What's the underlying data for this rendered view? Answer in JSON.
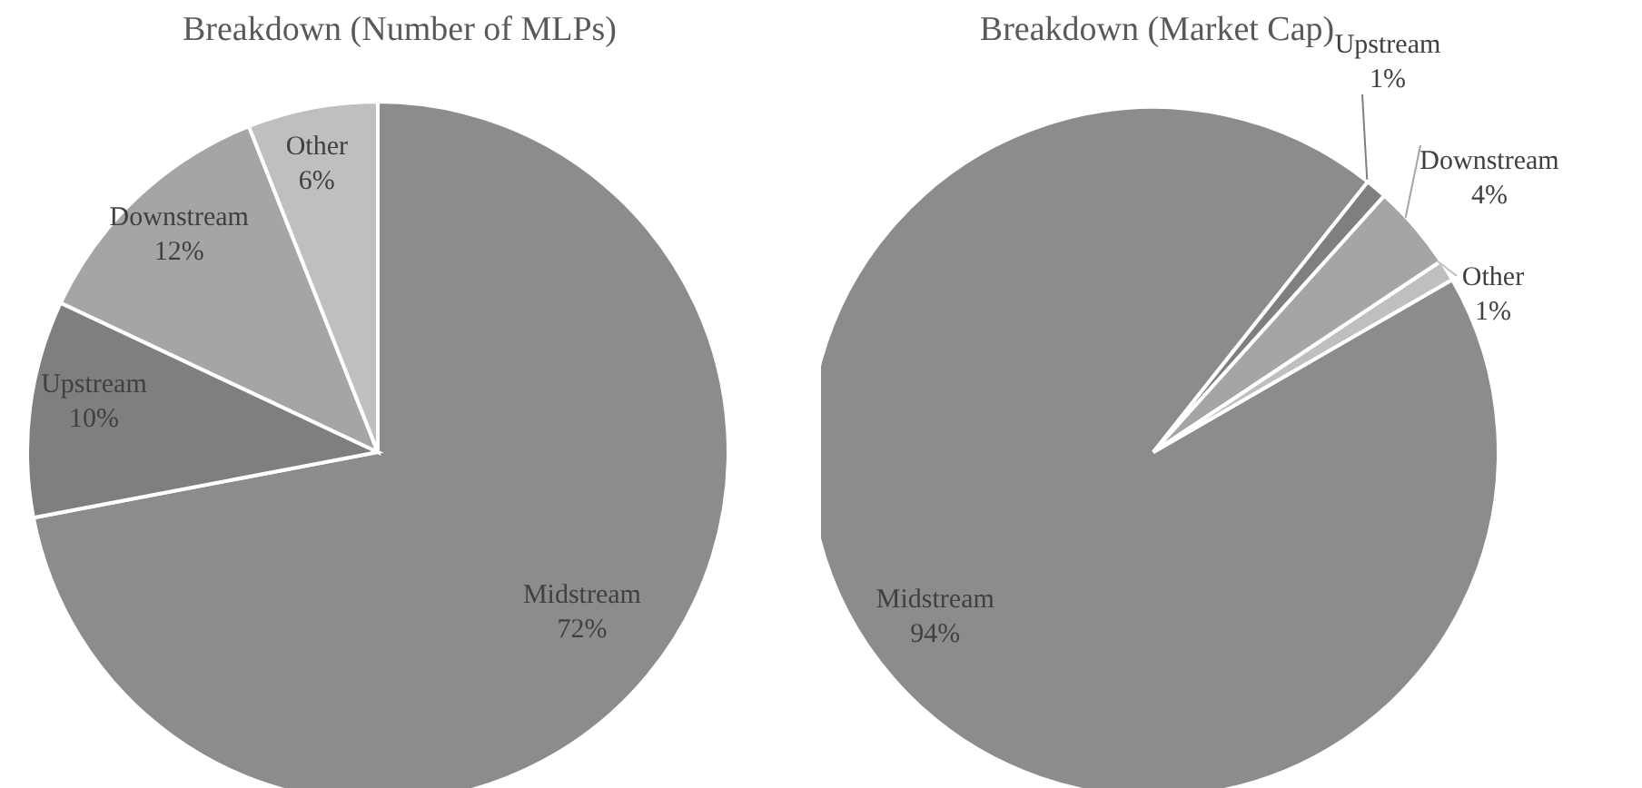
{
  "chart_data": [
    {
      "type": "pie",
      "title": "Breakdown (Number of MLPs)",
      "categories": [
        "Midstream",
        "Upstream",
        "Downstream",
        "Other"
      ],
      "values": [
        72,
        10,
        12,
        6
      ],
      "value_labels": [
        "72%",
        "10%",
        "12%",
        "6%"
      ],
      "colors": [
        "#8c8c8c",
        "#7f7f7f",
        "#a5a5a5",
        "#bfbfbf"
      ]
    },
    {
      "type": "pie",
      "title": "Breakdown (Market Cap)",
      "categories": [
        "Midstream",
        "Upstream",
        "Downstream",
        "Other"
      ],
      "values": [
        94,
        1,
        4,
        1
      ],
      "value_labels": [
        "94%",
        "1%",
        "4%",
        "1%"
      ],
      "colors": [
        "#8c8c8c",
        "#7f7f7f",
        "#a5a5a5",
        "#bfbfbf"
      ]
    }
  ]
}
